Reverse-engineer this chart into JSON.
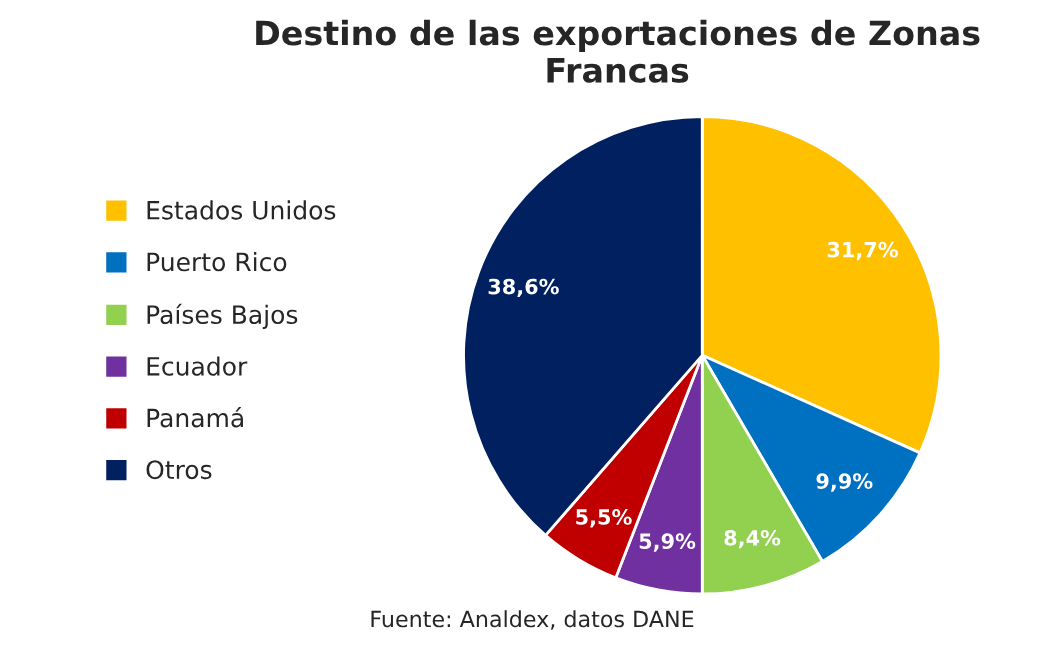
{
  "chart_data": {
    "type": "pie",
    "title": "Destino de las exportaciones de Zonas\nFrancas",
    "categories": [
      "Estados Unidos",
      "Puerto Rico",
      "Países Bajos",
      "Ecuador",
      "Panamá",
      "Otros"
    ],
    "values": [
      31.7,
      9.9,
      8.4,
      5.9,
      5.5,
      38.6
    ],
    "value_labels": [
      "31,7%",
      "9,9%",
      "8,4%",
      "5,9%",
      "5,5%",
      "38,6%"
    ],
    "colors": [
      "#ffc000",
      "#0070c0",
      "#92d050",
      "#7030a0",
      "#c00000",
      "#002060"
    ],
    "legend": "left",
    "annotations": [
      "Fuente: Analdex, datos DANE"
    ]
  }
}
